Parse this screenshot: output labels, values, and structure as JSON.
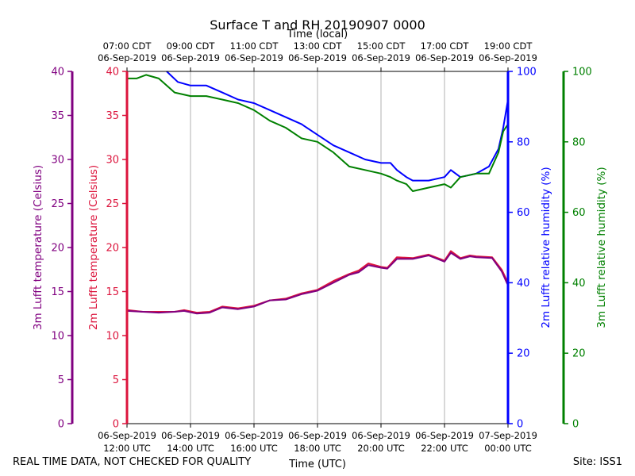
{
  "chart_data": {
    "type": "line",
    "title": "Surface T and RH 20190907 0000",
    "top_axis_label": "Time (local)",
    "xlabel": "Time (UTC)",
    "top_ticks": [
      [
        "07:00 CDT",
        "06-Sep-2019"
      ],
      [
        "09:00 CDT",
        "06-Sep-2019"
      ],
      [
        "11:00 CDT",
        "06-Sep-2019"
      ],
      [
        "13:00 CDT",
        "06-Sep-2019"
      ],
      [
        "15:00 CDT",
        "06-Sep-2019"
      ],
      [
        "17:00 CDT",
        "06-Sep-2019"
      ],
      [
        "19:00 CDT",
        "06-Sep-2019"
      ]
    ],
    "bottom_ticks": [
      [
        "06-Sep-2019",
        "12:00 UTC"
      ],
      [
        "06-Sep-2019",
        "14:00 UTC"
      ],
      [
        "06-Sep-2019",
        "16:00 UTC"
      ],
      [
        "06-Sep-2019",
        "18:00 UTC"
      ],
      [
        "06-Sep-2019",
        "20:00 UTC"
      ],
      [
        "06-Sep-2019",
        "22:00 UTC"
      ],
      [
        "07-Sep-2019",
        "00:00 UTC"
      ]
    ],
    "x_hours_utc": [
      12,
      14,
      16,
      18,
      20,
      22,
      24
    ],
    "xlim": [
      12,
      24
    ],
    "x_grid": true,
    "axes": {
      "t3m": {
        "label": "3m Lufft temperature (Celsius)",
        "color": "#800080",
        "ylim": [
          0,
          40
        ],
        "ticks": [
          "0",
          "5",
          "10",
          "15",
          "20",
          "25",
          "30",
          "35",
          "40"
        ]
      },
      "t2m": {
        "label": "2m Lufft temperature (Celsius)",
        "color": "#dc143c",
        "ylim": [
          0,
          40
        ],
        "ticks": [
          "0",
          "5",
          "10",
          "15",
          "20",
          "25",
          "30",
          "35",
          "40"
        ]
      },
      "rh2m": {
        "label": "2m Lufft relative humidity (%)",
        "color": "#0000ff",
        "ylim": [
          0,
          100
        ],
        "ticks": [
          "0",
          "20",
          "40",
          "60",
          "80",
          "100"
        ]
      },
      "rh3m": {
        "label": "3m Lufft relative humidity (%)",
        "color": "#008000",
        "ylim": [
          0,
          100
        ],
        "ticks": [
          "0",
          "20",
          "40",
          "60",
          "80",
          "100"
        ]
      }
    },
    "series": [
      {
        "axis": "t2m",
        "color": "#dc143c",
        "x": [
          12.0,
          12.5,
          13.0,
          13.5,
          13.8,
          14.2,
          14.6,
          15.0,
          15.5,
          16.0,
          16.5,
          17.0,
          17.5,
          18.0,
          18.5,
          19.0,
          19.3,
          19.6,
          20.0,
          20.2,
          20.5,
          21.0,
          21.5,
          22.0,
          22.2,
          22.5,
          22.8,
          23.0,
          23.5,
          23.8,
          24.0
        ],
        "y": [
          12.9,
          12.7,
          12.7,
          12.7,
          12.9,
          12.6,
          12.7,
          13.3,
          13.1,
          13.4,
          14.0,
          14.2,
          14.8,
          15.2,
          16.2,
          17.0,
          17.4,
          18.2,
          17.8,
          17.7,
          18.9,
          18.8,
          19.2,
          18.5,
          19.6,
          18.8,
          19.1,
          19.0,
          18.9,
          17.5,
          16.0
        ]
      },
      {
        "axis": "t3m",
        "color": "#800080",
        "x": [
          12.0,
          12.5,
          13.0,
          13.5,
          13.8,
          14.2,
          14.6,
          15.0,
          15.5,
          16.0,
          16.5,
          17.0,
          17.5,
          18.0,
          18.5,
          19.0,
          19.3,
          19.6,
          20.0,
          20.2,
          20.5,
          21.0,
          21.5,
          22.0,
          22.2,
          22.5,
          22.8,
          23.0,
          23.5,
          23.8,
          24.0
        ],
        "y": [
          12.8,
          12.7,
          12.6,
          12.7,
          12.8,
          12.5,
          12.6,
          13.2,
          13.0,
          13.3,
          14.0,
          14.1,
          14.7,
          15.1,
          16.0,
          16.9,
          17.2,
          18.0,
          17.7,
          17.6,
          18.7,
          18.7,
          19.1,
          18.4,
          19.4,
          18.7,
          19.0,
          18.9,
          18.8,
          17.3,
          15.7
        ]
      },
      {
        "axis": "rh2m",
        "color": "#0000ff",
        "x": [
          13.25,
          13.6,
          14.0,
          14.5,
          15.0,
          15.5,
          16.0,
          16.5,
          17.0,
          17.5,
          18.0,
          18.5,
          19.0,
          19.5,
          20.0,
          20.3,
          20.5,
          20.8,
          21.0,
          21.5,
          22.0,
          22.2,
          22.5,
          23.0,
          23.4,
          23.7,
          23.85,
          24.0
        ],
        "y": [
          100,
          97,
          96,
          96,
          94,
          92,
          91,
          89,
          87,
          85,
          82,
          79,
          77,
          75,
          74,
          74,
          72,
          70,
          69,
          69,
          70,
          72,
          70,
          71,
          73,
          78,
          84,
          92
        ]
      },
      {
        "axis": "rh3m",
        "color": "#008000",
        "x": [
          12.0,
          12.3,
          12.6,
          13.0,
          13.5,
          14.0,
          14.5,
          15.0,
          15.5,
          16.0,
          16.5,
          17.0,
          17.5,
          18.0,
          18.5,
          19.0,
          19.5,
          20.0,
          20.3,
          20.5,
          20.8,
          21.0,
          21.5,
          22.0,
          22.2,
          22.5,
          23.0,
          23.4,
          23.7,
          23.85,
          24.0
        ],
        "y": [
          98,
          98,
          99,
          98,
          94,
          93,
          93,
          92,
          91,
          89,
          86,
          84,
          81,
          80,
          77,
          73,
          72,
          71,
          70,
          69,
          68,
          66,
          67,
          68,
          67,
          70,
          71,
          71,
          77,
          83,
          85
        ]
      }
    ]
  },
  "footer": {
    "left": "REAL TIME DATA, NOT CHECKED FOR QUALITY",
    "right": "Site: ISS1"
  }
}
